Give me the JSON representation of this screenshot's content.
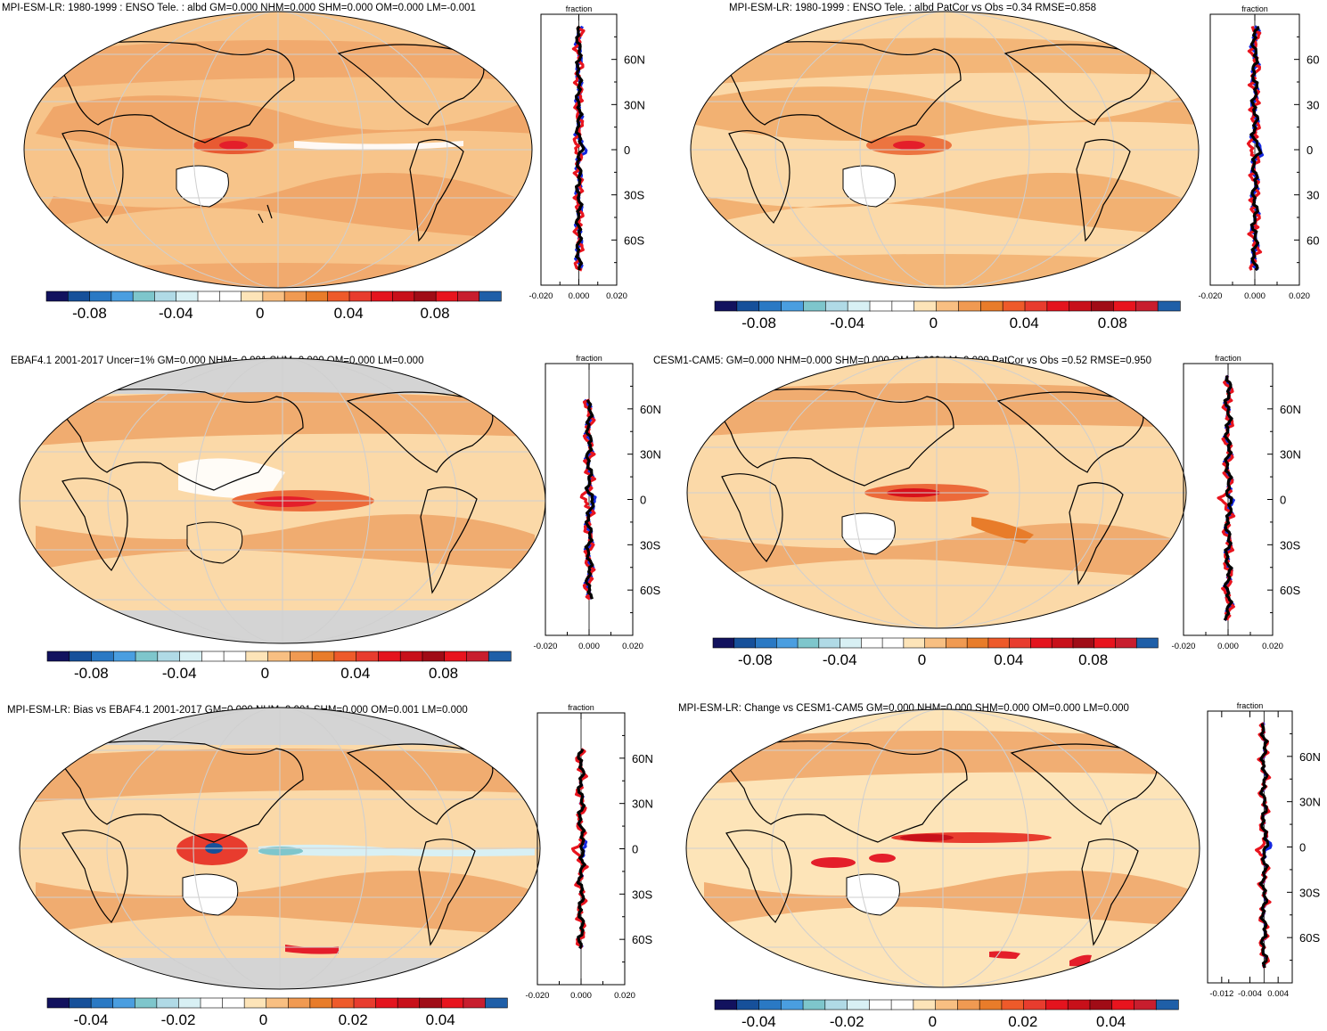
{
  "figure": {
    "description_title": ""
  },
  "colors": {
    "land_outline": "#000000",
    "grid": "#cfcfcf",
    "profile_blue": "#1428e0",
    "profile_red": "#e8141e",
    "profile_black": "#000000",
    "mask_gray": "#d4d4d4"
  },
  "colorbars": {
    "large": {
      "colors": [
        "#12125e",
        "#16509a",
        "#2a79c4",
        "#4a9ee0",
        "#7ec6cc",
        "#b0dae6",
        "#d8f0f4",
        "#ffffff",
        "#ffffff",
        "#fde4b8",
        "#f8bf82",
        "#f09a52",
        "#e87c2a",
        "#ee5a2a",
        "#e83c2e",
        "#e4141e",
        "#c8101a",
        "#a00c16",
        "#e8141e",
        "#c81e2e",
        "#1f5fa8"
      ],
      "ticks": [
        "-0.08",
        "-0.04",
        "0",
        "0.04",
        "0.08"
      ],
      "tick_fracs": [
        0.095,
        0.285,
        0.47,
        0.665,
        0.855
      ]
    },
    "small": {
      "colors": [
        "#12125e",
        "#16509a",
        "#2a79c4",
        "#4a9ee0",
        "#7ec6cc",
        "#b0dae6",
        "#d8f0f4",
        "#ffffff",
        "#ffffff",
        "#fde4b8",
        "#f8bf82",
        "#f09a52",
        "#e87c2a",
        "#ee5a2a",
        "#e83c2e",
        "#e4141e",
        "#c8101a",
        "#a00c16",
        "#e8141e",
        "#c81e2e",
        "#1f5fa8"
      ],
      "ticks": [
        "-0.04",
        "-0.02",
        "0",
        "0.02",
        "0.04"
      ],
      "tick_fracs": [
        0.095,
        0.285,
        0.47,
        0.665,
        0.855
      ]
    }
  },
  "chart_data": [
    {
      "type": "map+profile",
      "title": "MPI-ESM-LR: 1980-1999 : ENSO Tele. : albd GM=0.000 NHM=0.000 SHM=0.000 OM=0.000 LM=-0.001",
      "colorbar": "large",
      "profile_title": "fraction",
      "profile_xticks": [
        "-0.020",
        "0.000",
        "0.020"
      ],
      "profile_xlim": [
        -0.02,
        0.02
      ],
      "lat_labels": [
        "60N",
        "30N",
        "0",
        "30S",
        "60S"
      ],
      "land_mask": false,
      "hotspot": {
        "lon": 125,
        "lat": 0,
        "value": 0.06
      }
    },
    {
      "type": "map+profile",
      "title": "MPI-ESM-LR: 1980-1999 : ENSO Tele. : albd PatCor vs Obs =0.34 RMSE=0.858",
      "colorbar": "large",
      "profile_title": "fraction",
      "profile_xticks": [
        "-0.020",
        "0.000",
        "0.020"
      ],
      "profile_xlim": [
        -0.02,
        0.02
      ],
      "lat_labels": [
        "60",
        "30",
        "0",
        "30",
        "60"
      ],
      "land_mask": false,
      "hotspot": {
        "lon": 125,
        "lat": 0,
        "value": 0.06
      }
    },
    {
      "type": "map+profile",
      "title": "EBAF4.1 2001-2017 Uncer=1% GM=0.000 NHM=-0.001 SHM=0.000 OM=0.000 LM=0.000",
      "colorbar": "large",
      "profile_title": "fraction",
      "profile_xticks": [
        "-0.020",
        "0.000",
        "0.020"
      ],
      "profile_xlim": [
        -0.02,
        0.02
      ],
      "lat_labels": [
        "60N",
        "30N",
        "0",
        "30S",
        "60S"
      ],
      "land_mask": true,
      "hotspot": {
        "lon": 170,
        "lat": 0,
        "value": 0.08
      }
    },
    {
      "type": "map+profile",
      "title": "CESM1-CAM5: GM=0.000 NHM=0.000 SHM=0.000 OM=0.000 LM=0.000 PatCor vs Obs =0.52 RMSE=0.950",
      "colorbar": "large",
      "profile_title": "fraction",
      "profile_xticks": [
        "-0.020",
        "0.000",
        "0.020"
      ],
      "profile_xlim": [
        -0.02,
        0.02
      ],
      "lat_labels": [
        "60N",
        "30N",
        "0",
        "30S",
        "60S"
      ],
      "land_mask": false,
      "hotspot": {
        "lon": 150,
        "lat": 0,
        "value": 0.08
      }
    },
    {
      "type": "map+profile",
      "title": "MPI-ESM-LR: Bias vs EBAF4.1 2001-2017 GM=0.000 NHM=0.001 SHM=0.000 OM=0.001 LM=0.000",
      "colorbar": "small",
      "profile_title": "fraction",
      "profile_xticks": [
        "-0.020",
        "0.000",
        "0.020"
      ],
      "profile_xlim": [
        -0.02,
        0.02
      ],
      "lat_labels": [
        "60N",
        "30N",
        "0",
        "30S",
        "60S"
      ],
      "land_mask": true,
      "hotspot": {
        "lon": 130,
        "lat": 0,
        "value": 0.04
      }
    },
    {
      "type": "map+profile",
      "title": "MPI-ESM-LR: Change vs CESM1-CAM5 GM=0.000 NHM=0.000 SHM=0.000 OM=0.000 LM=0.000",
      "colorbar": "small",
      "profile_title": "fraction",
      "profile_xticks": [
        "-0.012",
        "-0.004",
        "0.004"
      ],
      "profile_xlim": [
        -0.016,
        0.008
      ],
      "lat_labels": [
        "60N",
        "30N",
        "0",
        "30S",
        "60S"
      ],
      "land_mask": false,
      "hotspot": {
        "lon": 160,
        "lat": 3,
        "value": 0.04
      }
    }
  ]
}
